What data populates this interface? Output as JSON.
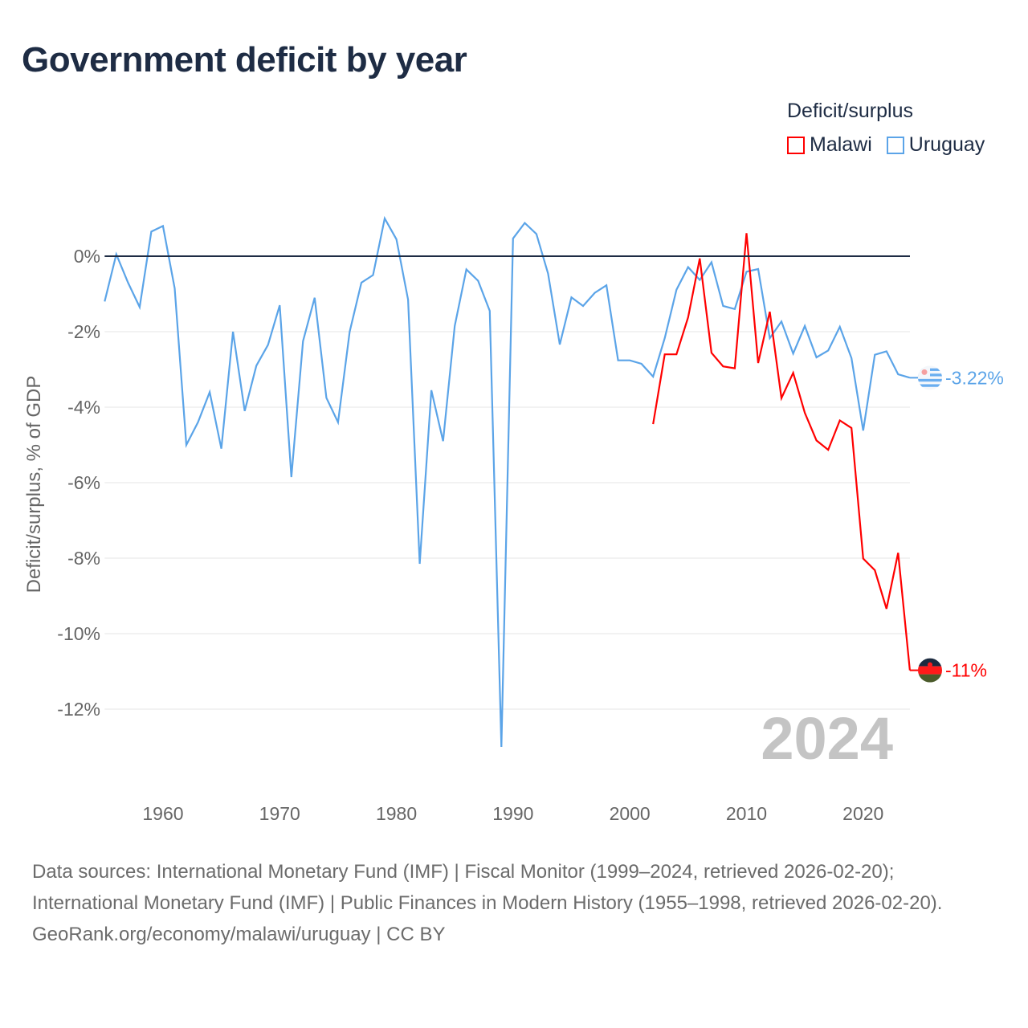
{
  "title": "Government deficit by year",
  "legend": {
    "title": "Deficit/surplus"
  },
  "footer": {
    "sources": "Data sources: International Monetary Fund (IMF) | Fiscal Monitor (1999–2024, retrieved 2026-02-20); International Monetary Fund (IMF) | Public Finances in Modern History (1955–1998, retrieved 2026-02-20).",
    "credit": "GeoRank.org/economy/malawi/uruguay | CC BY"
  },
  "chart_data": {
    "type": "line",
    "title": "Government deficit by year",
    "xlabel": "",
    "ylabel": "Deficit/surplus, % of GDP",
    "xlim": [
      1955,
      2024
    ],
    "ylim": [
      -13.5,
      1.5
    ],
    "x_ticks": [
      1960,
      1970,
      1980,
      1990,
      2000,
      2010,
      2020
    ],
    "x_tick_labels": [
      "1960",
      "1970",
      "1980",
      "1990",
      "2000",
      "2010",
      "2020"
    ],
    "y_ticks": [
      0,
      -2,
      -4,
      -6,
      -8,
      -10,
      -12
    ],
    "y_tick_labels": [
      "0%",
      "-2%",
      "-4%",
      "-6%",
      "-8%",
      "-10%",
      "-12%"
    ],
    "grid": true,
    "legend_position": "top-right",
    "year_watermark": "2024",
    "series": [
      {
        "name": "Malawi",
        "color": "#ff0000",
        "end_label": "-11%",
        "x": [
          2002,
          2003,
          2004,
          2005,
          2006,
          2007,
          2008,
          2009,
          2010,
          2011,
          2012,
          2013,
          2014,
          2015,
          2016,
          2017,
          2018,
          2019,
          2020,
          2021,
          2022,
          2023,
          2024
        ],
        "values": [
          -4.45,
          -2.6,
          -2.6,
          -1.62,
          -0.06,
          -2.56,
          -2.92,
          -2.97,
          0.61,
          -2.83,
          -1.47,
          -3.76,
          -3.09,
          -4.15,
          -4.88,
          -5.13,
          -4.35,
          -4.55,
          -8.01,
          -8.32,
          -9.34,
          -7.86,
          -10.97
        ]
      },
      {
        "name": "Uruguay",
        "color": "#5ba4e8",
        "end_label": "-3.22%",
        "x": [
          1955,
          1956,
          1957,
          1958,
          1959,
          1960,
          1961,
          1962,
          1963,
          1964,
          1965,
          1966,
          1967,
          1968,
          1969,
          1970,
          1971,
          1972,
          1973,
          1974,
          1975,
          1976,
          1977,
          1978,
          1979,
          1980,
          1981,
          1982,
          1983,
          1984,
          1985,
          1986,
          1987,
          1988,
          1989,
          1990,
          1991,
          1992,
          1993,
          1994,
          1995,
          1996,
          1997,
          1998,
          1999,
          2000,
          2001,
          2002,
          2003,
          2004,
          2005,
          2006,
          2007,
          2008,
          2009,
          2010,
          2011,
          2012,
          2013,
          2014,
          2015,
          2016,
          2017,
          2018,
          2019,
          2020,
          2021,
          2022,
          2023,
          2024
        ],
        "values": [
          -1.2,
          0.05,
          -0.7,
          -1.35,
          0.65,
          0.8,
          -0.85,
          -5.0,
          -4.4,
          -3.6,
          -5.1,
          -2.0,
          -4.1,
          -2.9,
          -2.35,
          -1.3,
          -5.85,
          -2.25,
          -1.1,
          -3.75,
          -4.4,
          -2.0,
          -0.7,
          -0.5,
          1.0,
          0.45,
          -1.15,
          -8.15,
          -3.55,
          -4.9,
          -1.85,
          -0.35,
          -0.65,
          -1.45,
          -13.0,
          0.47,
          0.88,
          0.59,
          -0.46,
          -2.34,
          -1.09,
          -1.32,
          -0.97,
          -0.77,
          -2.76,
          -2.76,
          -2.85,
          -3.19,
          -2.17,
          -0.89,
          -0.29,
          -0.63,
          -0.16,
          -1.32,
          -1.4,
          -0.41,
          -0.34,
          -2.17,
          -1.73,
          -2.58,
          -1.85,
          -2.68,
          -2.5,
          -1.87,
          -2.7,
          -4.62,
          -2.61,
          -2.52,
          -3.13,
          -3.22
        ]
      }
    ]
  }
}
